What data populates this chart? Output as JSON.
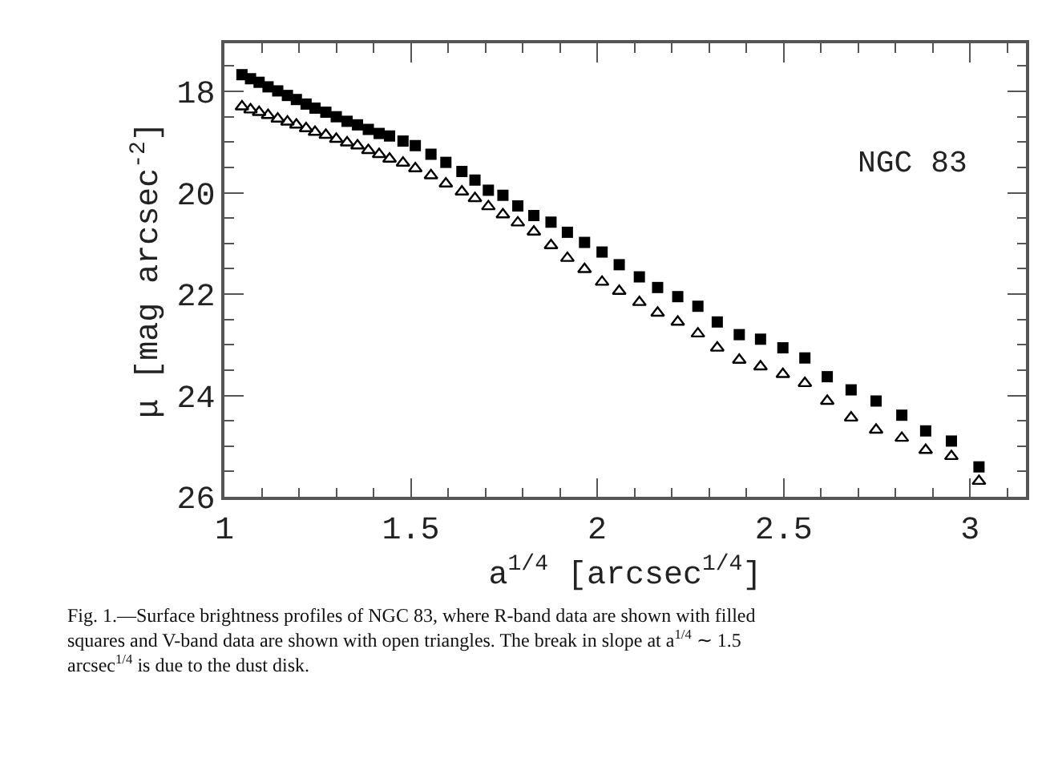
{
  "chart_data": {
    "type": "scatter",
    "xlabel": "a$^{1/4}$ [arcsec$^{1/4}$]",
    "ylabel": "μ [mag arcsec$^{-2}$]",
    "xlim": [
      1.0,
      3.15
    ],
    "xticks": [
      1,
      1.5,
      2,
      2.5,
      3
    ],
    "ylim": [
      26,
      17.05
    ],
    "yticks": [
      18,
      20,
      22,
      24,
      26
    ],
    "annotations": [
      "NGC 83",
      "Fig. 1.—Surface brightness profiles of NGC 83, where R-band data are shown with filled squares and V-band data are shown with open triangles. The break in slope at a$^{1/4}$ ∼ 1.5 arcsec$^{1/4}$ is due to the dust disk."
    ],
    "series": [
      {
        "color": "#000000",
        "marker": "square",
        "x": [
          1.047,
          1.07,
          1.093,
          1.117,
          1.143,
          1.169,
          1.193,
          1.219,
          1.243,
          1.272,
          1.3,
          1.329,
          1.357,
          1.386,
          1.415,
          1.443,
          1.479,
          1.512,
          1.554,
          1.594,
          1.637,
          1.672,
          1.708,
          1.747,
          1.787,
          1.83,
          1.876,
          1.92,
          1.966,
          2.013,
          2.059,
          2.113,
          2.162,
          2.216,
          2.27,
          2.322,
          2.381,
          2.438,
          2.498,
          2.557,
          2.617,
          2.681,
          2.748,
          2.817,
          2.881,
          2.95,
          3.024
        ],
        "values": [
          17.67,
          17.75,
          17.82,
          17.91,
          17.99,
          18.08,
          18.16,
          18.25,
          18.33,
          18.41,
          18.5,
          18.59,
          18.66,
          18.75,
          18.83,
          18.88,
          18.98,
          19.07,
          19.24,
          19.4,
          19.58,
          19.75,
          19.95,
          20.05,
          20.26,
          20.45,
          20.58,
          20.78,
          20.98,
          21.17,
          21.42,
          21.66,
          21.87,
          22.05,
          22.24,
          22.55,
          22.8,
          22.89,
          23.06,
          23.26,
          23.63,
          23.89,
          24.11,
          24.39,
          24.7,
          24.9,
          25.41
        ]
      },
      {
        "color": "#000000",
        "marker": "triangle",
        "x": [
          1.047,
          1.07,
          1.093,
          1.117,
          1.143,
          1.169,
          1.193,
          1.219,
          1.243,
          1.272,
          1.3,
          1.329,
          1.357,
          1.386,
          1.415,
          1.443,
          1.479,
          1.512,
          1.554,
          1.594,
          1.637,
          1.672,
          1.708,
          1.747,
          1.787,
          1.83,
          1.876,
          1.92,
          1.966,
          2.013,
          2.059,
          2.113,
          2.162,
          2.216,
          2.27,
          2.322,
          2.381,
          2.438,
          2.498,
          2.557,
          2.617,
          2.681,
          2.748,
          2.817,
          2.881,
          2.95,
          3.024
        ],
        "values": [
          18.3,
          18.36,
          18.41,
          18.47,
          18.54,
          18.6,
          18.66,
          18.73,
          18.8,
          18.86,
          18.94,
          19.01,
          19.07,
          19.16,
          19.24,
          19.33,
          19.41,
          19.52,
          19.66,
          19.82,
          19.98,
          20.11,
          20.27,
          20.43,
          20.59,
          20.77,
          21.04,
          21.29,
          21.51,
          21.76,
          21.94,
          22.16,
          22.37,
          22.55,
          22.78,
          23.06,
          23.3,
          23.43,
          23.58,
          23.76,
          24.11,
          24.44,
          24.68,
          24.84,
          25.08,
          25.2,
          25.69
        ]
      }
    ]
  }
}
